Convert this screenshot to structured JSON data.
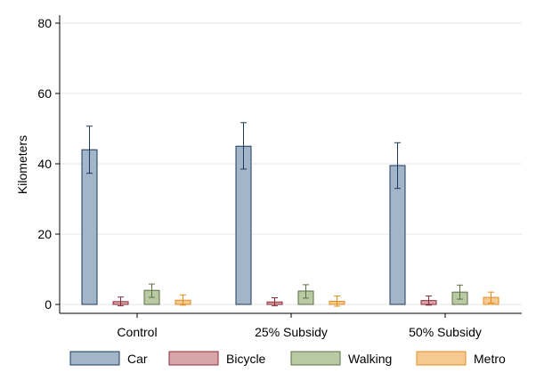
{
  "chart_data": {
    "type": "bar",
    "ylabel": "Kilometers",
    "xlabel": "",
    "ylim": [
      0,
      80
    ],
    "yticks": [
      0,
      20,
      40,
      60,
      80
    ],
    "categories": [
      "Control",
      "25% Subsidy",
      "50% Subsidy"
    ],
    "error_bars": true,
    "grid": true,
    "legend": "bottom",
    "series": [
      {
        "name": "Car",
        "color": "#a3b5c9",
        "stroke": "#1b3a5c",
        "values": [
          44,
          45,
          39.5
        ],
        "lower": [
          37.3,
          38.5,
          33
        ],
        "upper": [
          50.7,
          51.7,
          46
        ]
      },
      {
        "name": "Bicycle",
        "color": "#d8a5a9",
        "stroke": "#8c2b3a",
        "values": [
          0.8,
          0.7,
          1.1
        ],
        "lower": [
          -0.4,
          -0.4,
          -0.2
        ],
        "upper": [
          2.1,
          1.9,
          2.4
        ]
      },
      {
        "name": "Walking",
        "color": "#b9c9a3",
        "stroke": "#5a7040",
        "values": [
          4,
          3.8,
          3.5
        ],
        "lower": [
          2,
          1.8,
          1.5
        ],
        "upper": [
          5.8,
          5.6,
          5.5
        ]
      },
      {
        "name": "Metro",
        "color": "#f6c892",
        "stroke": "#e08d1c",
        "values": [
          1.2,
          0.9,
          2
        ],
        "lower": [
          -0.2,
          -0.5,
          0.4
        ],
        "upper": [
          2.7,
          2.4,
          3.5
        ]
      }
    ]
  }
}
